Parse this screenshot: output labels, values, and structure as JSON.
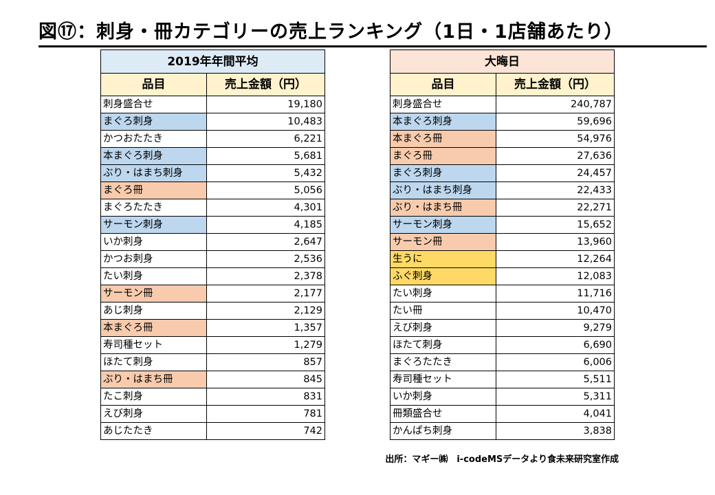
{
  "title": "図⑰：刺身・冊カテゴリーの売上ランキング（1日・1店舗あたり）",
  "colors": {
    "sashimi": "#BDD7EE",
    "saku": "#F8CBAD",
    "uni_fugu": "#FFD966",
    "none": "#FFFFFF",
    "left_header": "#DDEBF7",
    "right_header": "#FCE4D6",
    "col_header": "#FFF2CC"
  },
  "tables": [
    {
      "heading": "2019年年間平均",
      "col_item": "品目",
      "col_sales": "売上金額（円）",
      "rows": [
        {
          "item": "刺身盛合せ",
          "sales": "19,180",
          "hl": "none"
        },
        {
          "item": "まぐろ刺身",
          "sales": "10,483",
          "hl": "sashimi"
        },
        {
          "item": "かつおたたき",
          "sales": "6,221",
          "hl": "none"
        },
        {
          "item": "本まぐろ刺身",
          "sales": "5,681",
          "hl": "sashimi"
        },
        {
          "item": "ぶり・はまち刺身",
          "sales": "5,432",
          "hl": "sashimi"
        },
        {
          "item": "まぐろ冊",
          "sales": "5,056",
          "hl": "saku"
        },
        {
          "item": "まぐろたたき",
          "sales": "4,301",
          "hl": "none"
        },
        {
          "item": "サーモン刺身",
          "sales": "4,185",
          "hl": "sashimi"
        },
        {
          "item": "いか刺身",
          "sales": "2,647",
          "hl": "none"
        },
        {
          "item": "かつお刺身",
          "sales": "2,536",
          "hl": "none"
        },
        {
          "item": "たい刺身",
          "sales": "2,378",
          "hl": "none"
        },
        {
          "item": "サーモン冊",
          "sales": "2,177",
          "hl": "saku"
        },
        {
          "item": "あじ刺身",
          "sales": "2,129",
          "hl": "none"
        },
        {
          "item": "本まぐろ冊",
          "sales": "1,357",
          "hl": "saku"
        },
        {
          "item": "寿司種セット",
          "sales": "1,279",
          "hl": "none"
        },
        {
          "item": "ほたて刺身",
          "sales": "857",
          "hl": "none"
        },
        {
          "item": "ぶり・はまち冊",
          "sales": "845",
          "hl": "saku"
        },
        {
          "item": "たこ刺身",
          "sales": "831",
          "hl": "none"
        },
        {
          "item": "えび刺身",
          "sales": "781",
          "hl": "none"
        },
        {
          "item": "あじたたき",
          "sales": "742",
          "hl": "none"
        }
      ]
    },
    {
      "heading": "大晦日",
      "col_item": "品目",
      "col_sales": "売上金額（円）",
      "rows": [
        {
          "item": "刺身盛合せ",
          "sales": "240,787",
          "hl": "none"
        },
        {
          "item": "本まぐろ刺身",
          "sales": "59,696",
          "hl": "sashimi"
        },
        {
          "item": "本まぐろ冊",
          "sales": "54,976",
          "hl": "saku"
        },
        {
          "item": "まぐろ冊",
          "sales": "27,636",
          "hl": "saku"
        },
        {
          "item": "まぐろ刺身",
          "sales": "24,457",
          "hl": "sashimi"
        },
        {
          "item": "ぶり・はまち刺身",
          "sales": "22,433",
          "hl": "sashimi"
        },
        {
          "item": "ぶり・はまち冊",
          "sales": "22,271",
          "hl": "saku"
        },
        {
          "item": "サーモン刺身",
          "sales": "15,652",
          "hl": "sashimi"
        },
        {
          "item": "サーモン冊",
          "sales": "13,960",
          "hl": "saku"
        },
        {
          "item": "生うに",
          "sales": "12,264",
          "hl": "uni_fugu"
        },
        {
          "item": "ふぐ刺身",
          "sales": "12,083",
          "hl": "uni_fugu"
        },
        {
          "item": "たい刺身",
          "sales": "11,716",
          "hl": "none"
        },
        {
          "item": "たい冊",
          "sales": "10,470",
          "hl": "none"
        },
        {
          "item": "えび刺身",
          "sales": "9,279",
          "hl": "none"
        },
        {
          "item": "ほたて刺身",
          "sales": "6,690",
          "hl": "none"
        },
        {
          "item": "まぐろたたき",
          "sales": "6,006",
          "hl": "none"
        },
        {
          "item": "寿司種セット",
          "sales": "5,511",
          "hl": "none"
        },
        {
          "item": "いか刺身",
          "sales": "5,311",
          "hl": "none"
        },
        {
          "item": "冊類盛合せ",
          "sales": "4,041",
          "hl": "none"
        },
        {
          "item": "かんぱち刺身",
          "sales": "3,838",
          "hl": "none"
        }
      ]
    }
  ],
  "source": "出所：マギー㈱　i-codeMSデータより食未来研究室作成"
}
